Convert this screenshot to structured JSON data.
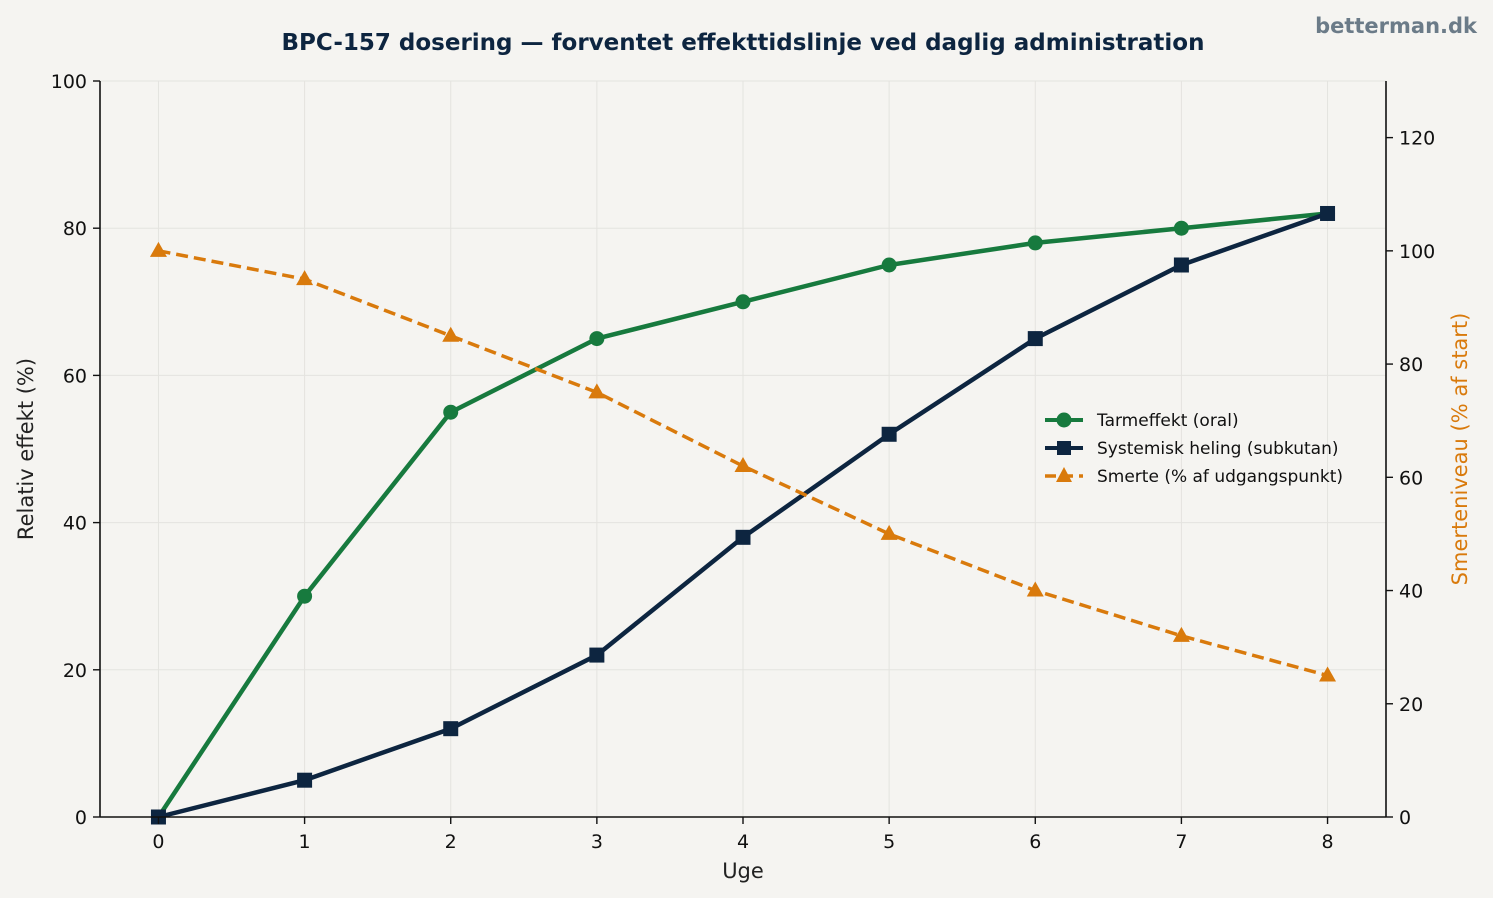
{
  "brand": "betterman.dk",
  "colors": {
    "background": "#f5f4f1",
    "gut": "#177a3e",
    "systemic": "#0d2540",
    "pain": "#d97a0c",
    "grid": "#e4e3df"
  },
  "chart_data": {
    "type": "line",
    "title": "BPC-157 dosering — forventet effekttidslinje ved daglig administration",
    "xlabel": "Uge",
    "ylabel": "Relativ effekt (%)",
    "y2label": "Smerteniveau (% af start)",
    "x": [
      0,
      1,
      2,
      3,
      4,
      5,
      6,
      7,
      8
    ],
    "xlim": [
      -0.4,
      8.4
    ],
    "ylim": [
      0,
      100
    ],
    "y2lim": [
      0,
      130
    ],
    "xticks": [
      "0",
      "1",
      "2",
      "3",
      "4",
      "5",
      "6",
      "7",
      "8"
    ],
    "yticks": [
      "0",
      "20",
      "40",
      "60",
      "80",
      "100"
    ],
    "y2ticks": [
      "0",
      "20",
      "40",
      "60",
      "80",
      "100",
      "120"
    ],
    "grid": true,
    "legend_position": "center-right",
    "series": [
      {
        "name": "Tarmeffekt (oral)",
        "axis": "left",
        "marker": "circle",
        "style": "solid",
        "color": "#177a3e",
        "values": [
          0,
          30,
          55,
          65,
          70,
          75,
          78,
          80,
          82
        ]
      },
      {
        "name": "Systemisk heling (subkutan)",
        "axis": "left",
        "marker": "square",
        "style": "solid",
        "color": "#0d2540",
        "values": [
          0,
          5,
          12,
          22,
          38,
          52,
          65,
          75,
          82
        ]
      },
      {
        "name": "Smerte (% af udgangspunkt)",
        "axis": "right",
        "marker": "triangle",
        "style": "dashed",
        "color": "#d97a0c",
        "values": [
          100,
          95,
          85,
          75,
          62,
          50,
          40,
          32,
          25
        ]
      }
    ]
  }
}
